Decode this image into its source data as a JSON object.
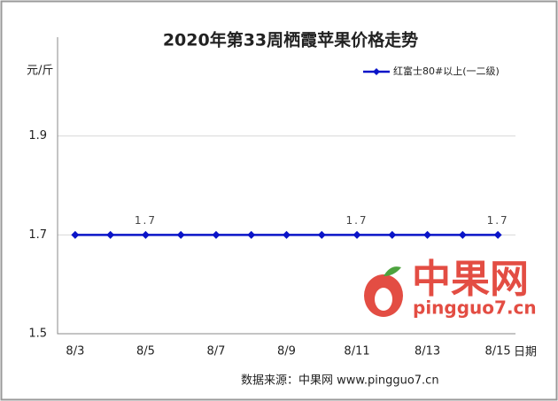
{
  "chart_data": {
    "type": "line",
    "title": "2020年第33周栖霞苹果价格走势",
    "y_label": "元/斤",
    "x_label": "日期",
    "source": "数据来源：中果网 www.pingguo7.cn",
    "watermark": {
      "name": "中果网",
      "site": "pingguo7.cn"
    },
    "categories": [
      "8/3",
      null,
      "8/5",
      null,
      "8/7",
      null,
      "8/9",
      null,
      "8/11",
      null,
      "8/13",
      null,
      "8/15"
    ],
    "series": [
      {
        "name": "红富士80#以上(一二级)",
        "color": "#0a14c8",
        "values": [
          1.7,
          1.7,
          1.7,
          1.7,
          1.7,
          1.7,
          1.7,
          1.7,
          1.7,
          1.7,
          1.7,
          1.7,
          1.7
        ],
        "value_labels": [
          null,
          null,
          "1.7",
          null,
          null,
          null,
          null,
          null,
          "1.7",
          null,
          null,
          null,
          "1.7"
        ]
      }
    ],
    "ylim": [
      1.5,
      2.1
    ],
    "yticks": [
      1.5,
      1.7,
      1.9
    ],
    "grid": true,
    "legend": "top-right"
  }
}
